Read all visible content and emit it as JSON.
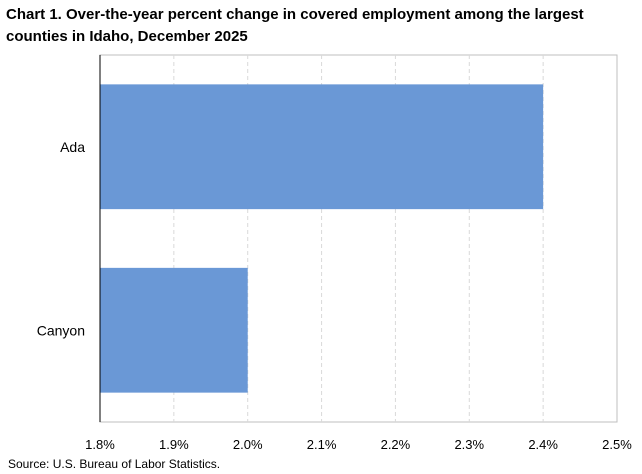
{
  "chart_data": {
    "type": "bar",
    "orientation": "horizontal",
    "title": "Chart 1. Over-the-year percent change in covered employment among the largest counties in Idaho, December 2025",
    "categories": [
      "Ada",
      "Canyon"
    ],
    "values": [
      2.4,
      2.0
    ],
    "xlim": [
      1.8,
      2.5
    ],
    "x_ticks": [
      "1.8%",
      "1.9%",
      "2.0%",
      "2.1%",
      "2.2%",
      "2.3%",
      "2.4%",
      "2.5%"
    ],
    "x_tick_values": [
      1.8,
      1.9,
      2.0,
      2.1,
      2.2,
      2.3,
      2.4,
      2.5
    ],
    "grid": "vertical dashed",
    "bar_color": "#6a98d6",
    "source": "Source: U.S. Bureau of Labor Statistics."
  }
}
